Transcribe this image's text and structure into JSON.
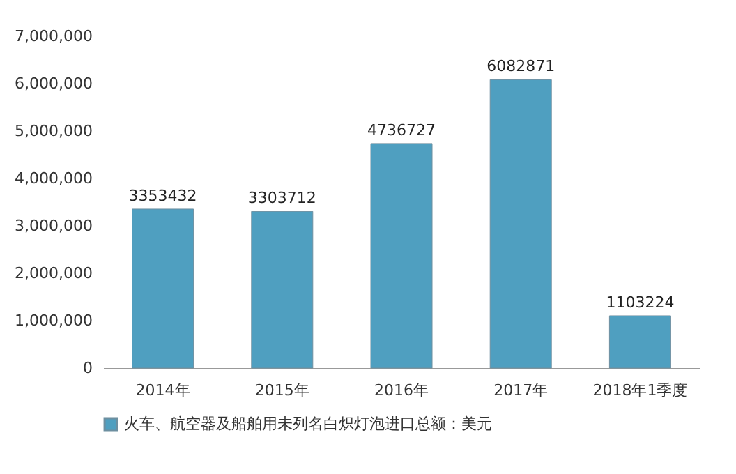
{
  "chart_data": {
    "type": "bar",
    "categories": [
      "2014年",
      "2015年",
      "2016年",
      "2017年",
      "2018年1季度"
    ],
    "series": [
      {
        "name": "火车、航空器及船舶用未列名白炽灯泡进口总额：美元",
        "color": "#4f9fc0",
        "values": [
          3353432,
          3303712,
          4736727,
          6082871,
          1103224
        ]
      }
    ],
    "ylim": [
      0,
      7000000
    ],
    "yticks": [
      0,
      {
        "value": 1000000,
        "label": "1,000,000"
      },
      {
        "value": 2000000,
        "label": "2,000,000"
      },
      {
        "value": 3000000,
        "label": "3,000,000"
      },
      {
        "value": 4000000,
        "label": "4,000,000"
      },
      {
        "value": 5000000,
        "label": "5,000,000"
      },
      {
        "value": 6000000,
        "label": "6,000,000"
      },
      {
        "value": 7000000,
        "label": "7,000,000"
      }
    ],
    "data_labels": true,
    "legend": "bottom",
    "grid": false
  }
}
